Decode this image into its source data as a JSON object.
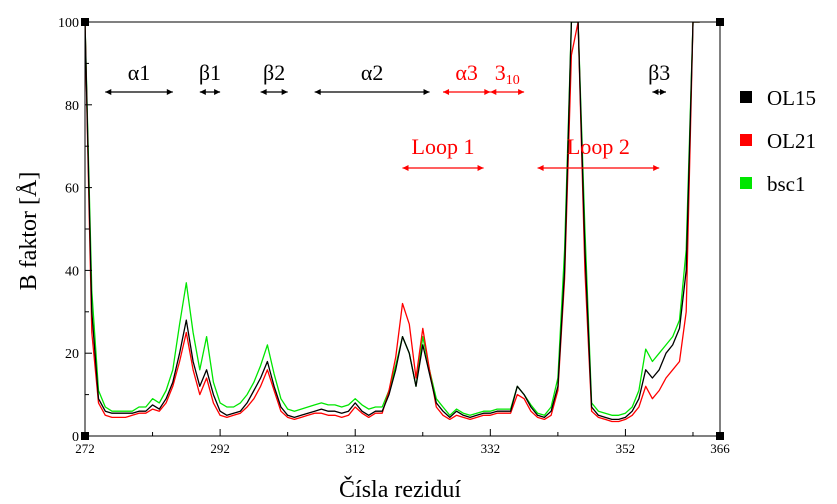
{
  "chart_data": {
    "type": "line",
    "xlabel": "Čísla reziduí",
    "ylabel": "B faktor [Å]",
    "xlim": [
      272,
      366
    ],
    "ylim": [
      0,
      100
    ],
    "x_ticks": [
      272,
      292,
      312,
      332,
      352,
      366
    ],
    "y_ticks": [
      0,
      20,
      40,
      60,
      80,
      100
    ],
    "grid": false,
    "legend_position": "right",
    "legend": [
      {
        "name": "OL15",
        "color": "#000000"
      },
      {
        "name": "OL21",
        "color": "#ff0000"
      },
      {
        "name": "bsc1",
        "color": "#00e600"
      }
    ],
    "series": [
      {
        "name": "OL15",
        "color": "#000000",
        "x": [
          272,
          273,
          274,
          275,
          276,
          277,
          278,
          279,
          280,
          281,
          282,
          283,
          284,
          285,
          286,
          287,
          288,
          289,
          290,
          291,
          292,
          293,
          294,
          295,
          296,
          297,
          298,
          299,
          300,
          301,
          302,
          303,
          304,
          305,
          306,
          307,
          308,
          309,
          310,
          311,
          312,
          313,
          314,
          315,
          316,
          317,
          318,
          319,
          320,
          321,
          322,
          323,
          324,
          325,
          326,
          327,
          328,
          329,
          330,
          331,
          332,
          333,
          334,
          335,
          336,
          337,
          338,
          339,
          340,
          341,
          342,
          343,
          344,
          345,
          346,
          347,
          348,
          349,
          350,
          351,
          352,
          353,
          354,
          355,
          356,
          357,
          358,
          359,
          360,
          361,
          362,
          363
        ],
        "y": [
          100,
          30,
          9,
          6,
          5.5,
          5.5,
          5.5,
          5.5,
          6,
          6,
          7.5,
          6.5,
          9,
          13,
          20,
          28,
          18,
          12,
          16,
          10,
          6,
          5,
          5.5,
          6,
          8,
          11,
          14,
          18,
          12,
          7,
          5,
          4.5,
          5,
          5.5,
          6,
          6.5,
          6,
          6,
          5.5,
          6,
          8,
          6,
          5,
          6,
          6,
          10,
          16,
          24,
          20,
          12,
          22,
          15,
          8,
          6,
          4.5,
          6,
          5,
          4.5,
          5,
          5.5,
          5.5,
          6,
          6,
          6,
          12,
          10,
          7,
          5,
          4.5,
          6,
          12,
          40,
          100,
          100,
          45,
          7,
          5,
          4.5,
          4,
          4,
          4.5,
          6,
          9,
          16,
          14,
          16,
          20,
          22,
          26,
          40,
          100,
          100
        ]
      },
      {
        "name": "OL21",
        "color": "#ff0000",
        "x": [
          272,
          273,
          274,
          275,
          276,
          277,
          278,
          279,
          280,
          281,
          282,
          283,
          284,
          285,
          286,
          287,
          288,
          289,
          290,
          291,
          292,
          293,
          294,
          295,
          296,
          297,
          298,
          299,
          300,
          301,
          302,
          303,
          304,
          305,
          306,
          307,
          308,
          309,
          310,
          311,
          312,
          313,
          314,
          315,
          316,
          317,
          318,
          319,
          320,
          321,
          322,
          323,
          324,
          325,
          326,
          327,
          328,
          329,
          330,
          331,
          332,
          333,
          334,
          335,
          336,
          337,
          338,
          339,
          340,
          341,
          342,
          343,
          344,
          345,
          346,
          347,
          348,
          349,
          350,
          351,
          352,
          353,
          354,
          355,
          356,
          357,
          358,
          359,
          360,
          361,
          362,
          363
        ],
        "y": [
          100,
          25,
          8,
          5,
          4.5,
          4.5,
          4.5,
          5,
          5.5,
          5.5,
          6.5,
          6,
          8,
          12,
          18,
          25,
          16,
          10,
          14,
          8,
          5,
          4.5,
          5,
          5.5,
          7,
          9,
          12,
          16,
          11,
          6,
          4.5,
          4,
          4.5,
          5,
          5.5,
          5.5,
          5,
          5,
          4.5,
          5,
          7,
          5.5,
          4.5,
          5.5,
          5.5,
          11,
          19,
          32,
          27,
          14,
          26,
          16,
          7,
          5,
          4,
          5,
          4.5,
          4,
          4.5,
          5,
          5,
          5.5,
          5.5,
          5.5,
          10,
          9,
          6,
          4.5,
          4,
          5,
          11,
          38,
          92,
          100,
          40,
          6,
          4.5,
          4,
          3.5,
          3.5,
          4,
          5,
          7,
          12,
          9,
          11,
          14,
          16,
          18,
          30,
          100,
          100
        ]
      },
      {
        "name": "bsc1",
        "color": "#00e600",
        "x": [
          272,
          273,
          274,
          275,
          276,
          277,
          278,
          279,
          280,
          281,
          282,
          283,
          284,
          285,
          286,
          287,
          288,
          289,
          290,
          291,
          292,
          293,
          294,
          295,
          296,
          297,
          298,
          299,
          300,
          301,
          302,
          303,
          304,
          305,
          306,
          307,
          308,
          309,
          310,
          311,
          312,
          313,
          314,
          315,
          316,
          317,
          318,
          319,
          320,
          321,
          322,
          323,
          324,
          325,
          326,
          327,
          328,
          329,
          330,
          331,
          332,
          333,
          334,
          335,
          336,
          337,
          338,
          339,
          340,
          341,
          342,
          343,
          344,
          345,
          346,
          347,
          348,
          349,
          350,
          351,
          352,
          353,
          354,
          355,
          356,
          357,
          358,
          359,
          360,
          361,
          362,
          363
        ],
        "y": [
          100,
          35,
          11,
          7,
          6,
          6,
          6,
          6,
          7,
          7,
          9,
          8,
          11,
          16,
          27,
          37,
          25,
          16,
          24,
          13,
          8,
          7,
          7,
          8,
          10,
          13,
          17,
          22,
          15,
          9,
          6.5,
          6,
          6.5,
          7,
          7.5,
          8,
          7.5,
          7.5,
          7,
          7.5,
          9,
          7.5,
          6.5,
          7,
          7,
          11,
          17,
          24,
          20,
          12,
          24,
          16,
          9,
          7,
          5,
          6.5,
          5.5,
          5,
          5.5,
          6,
          6,
          6.5,
          6.5,
          6.5,
          12,
          10,
          7.5,
          5.5,
          5,
          7,
          14,
          45,
          100,
          100,
          50,
          8,
          6,
          5.5,
          5,
          5,
          5.5,
          7,
          11,
          21,
          18,
          20,
          22,
          24,
          28,
          45,
          100,
          100
        ]
      }
    ],
    "annotations_black": [
      {
        "label": "α1",
        "x1": 275,
        "x2": 285
      },
      {
        "label": "β1",
        "x1": 289,
        "x2": 292
      },
      {
        "label": "β2",
        "x1": 298,
        "x2": 302
      },
      {
        "label": "α2",
        "x1": 306,
        "x2": 323
      },
      {
        "label": "β3",
        "x1": 356,
        "x2": 358
      }
    ],
    "annotations_red": [
      {
        "label": "α3",
        "x1": 325,
        "x2": 332
      },
      {
        "label": "3",
        "sub": "10",
        "x1": 332,
        "x2": 337
      },
      {
        "label": "Loop 1",
        "x1": 319,
        "x2": 331
      },
      {
        "label": "Loop 2",
        "x1": 339,
        "x2": 357
      }
    ]
  }
}
